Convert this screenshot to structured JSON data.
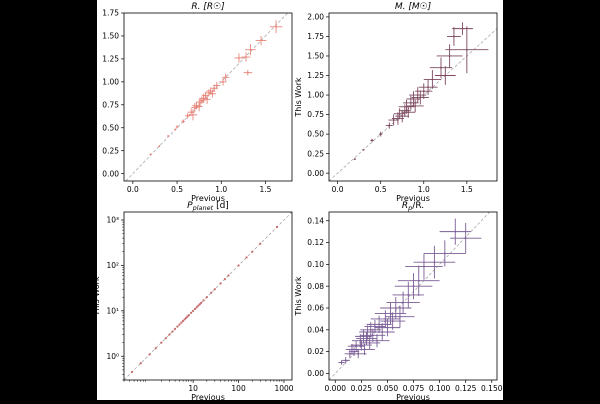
{
  "chart_data": [
    {
      "type": "scatter",
      "title": "R. [R☉]",
      "xlabel": "Previous",
      "ylabel": "This Work",
      "xlim": [
        -0.1,
        1.8
      ],
      "ylim": [
        -0.08,
        1.75
      ],
      "xticks": [
        0.0,
        0.5,
        1.0,
        1.5
      ],
      "xtick_labels": [
        "0.0",
        "0.5",
        "1.0",
        "1.5"
      ],
      "yticks": [
        0.0,
        0.25,
        0.5,
        0.75,
        1.0,
        1.25,
        1.5,
        1.75
      ],
      "ytick_labels": [
        "0.00",
        "0.25",
        "0.50",
        "0.75",
        "1.00",
        "1.25",
        "1.50",
        "1.75"
      ],
      "scale": "linear",
      "color": "#e8857a",
      "points": [
        {
          "x": 0.2,
          "y": 0.21,
          "ex": 0.01,
          "ey": 0.01
        },
        {
          "x": 0.3,
          "y": 0.3,
          "ex": 0.01,
          "ey": 0.01
        },
        {
          "x": 0.4,
          "y": 0.41,
          "ex": 0.01,
          "ey": 0.01
        },
        {
          "x": 0.48,
          "y": 0.48,
          "ex": 0.01,
          "ey": 0.01
        },
        {
          "x": 0.5,
          "y": 0.51,
          "ex": 0.015,
          "ey": 0.015
        },
        {
          "x": 0.57,
          "y": 0.57,
          "ex": 0.02,
          "ey": 0.02
        },
        {
          "x": 0.62,
          "y": 0.63,
          "ex": 0.03,
          "ey": 0.03
        },
        {
          "x": 0.66,
          "y": 0.67,
          "ex": 0.04,
          "ey": 0.04
        },
        {
          "x": 0.68,
          "y": 0.64,
          "ex": 0.05,
          "ey": 0.06
        },
        {
          "x": 0.7,
          "y": 0.72,
          "ex": 0.04,
          "ey": 0.05
        },
        {
          "x": 0.72,
          "y": 0.74,
          "ex": 0.05,
          "ey": 0.04
        },
        {
          "x": 0.75,
          "y": 0.73,
          "ex": 0.04,
          "ey": 0.05
        },
        {
          "x": 0.76,
          "y": 0.78,
          "ex": 0.05,
          "ey": 0.04
        },
        {
          "x": 0.78,
          "y": 0.8,
          "ex": 0.04,
          "ey": 0.04
        },
        {
          "x": 0.8,
          "y": 0.82,
          "ex": 0.05,
          "ey": 0.05
        },
        {
          "x": 0.82,
          "y": 0.85,
          "ex": 0.04,
          "ey": 0.04
        },
        {
          "x": 0.84,
          "y": 0.81,
          "ex": 0.04,
          "ey": 0.05
        },
        {
          "x": 0.86,
          "y": 0.88,
          "ex": 0.04,
          "ey": 0.04
        },
        {
          "x": 0.88,
          "y": 0.9,
          "ex": 0.05,
          "ey": 0.04
        },
        {
          "x": 0.9,
          "y": 0.87,
          "ex": 0.04,
          "ey": 0.04
        },
        {
          "x": 0.92,
          "y": 0.93,
          "ex": 0.04,
          "ey": 0.04
        },
        {
          "x": 0.95,
          "y": 0.96,
          "ex": 0.04,
          "ey": 0.04
        },
        {
          "x": 1.02,
          "y": 1.0,
          "ex": 0.04,
          "ey": 0.04
        },
        {
          "x": 1.05,
          "y": 1.05,
          "ex": 0.04,
          "ey": 0.04
        },
        {
          "x": 1.2,
          "y": 1.26,
          "ex": 0.05,
          "ey": 0.05
        },
        {
          "x": 1.28,
          "y": 1.27,
          "ex": 0.05,
          "ey": 0.05
        },
        {
          "x": 1.3,
          "y": 1.1,
          "ex": 0.05,
          "ey": 0.03
        },
        {
          "x": 1.33,
          "y": 1.35,
          "ex": 0.06,
          "ey": 0.06
        },
        {
          "x": 1.45,
          "y": 1.45,
          "ex": 0.06,
          "ey": 0.05
        },
        {
          "x": 1.62,
          "y": 1.6,
          "ex": 0.07,
          "ey": 0.07
        }
      ]
    },
    {
      "type": "scatter",
      "title": "M. [M☉]",
      "xlabel": "Previous",
      "ylabel": "This Work",
      "xlim": [
        -0.1,
        1.85
      ],
      "ylim": [
        -0.1,
        2.05
      ],
      "xticks": [
        0.0,
        0.5,
        1.0,
        1.5
      ],
      "xtick_labels": [
        "0.0",
        "0.5",
        "1.0",
        "1.5"
      ],
      "yticks": [
        0.0,
        0.25,
        0.5,
        0.75,
        1.0,
        1.25,
        1.5,
        1.75,
        2.0
      ],
      "ytick_labels": [
        "0.00",
        "0.25",
        "0.50",
        "0.75",
        "1.00",
        "1.25",
        "1.50",
        "1.75",
        "2.00"
      ],
      "scale": "linear",
      "color": "#7d4860",
      "points": [
        {
          "x": 0.2,
          "y": 0.18,
          "ex": 0.01,
          "ey": 0.01
        },
        {
          "x": 0.3,
          "y": 0.3,
          "ex": 0.01,
          "ey": 0.01
        },
        {
          "x": 0.4,
          "y": 0.42,
          "ex": 0.02,
          "ey": 0.02
        },
        {
          "x": 0.5,
          "y": 0.5,
          "ex": 0.02,
          "ey": 0.03
        },
        {
          "x": 0.6,
          "y": 0.61,
          "ex": 0.04,
          "ey": 0.04
        },
        {
          "x": 0.65,
          "y": 0.68,
          "ex": 0.06,
          "ey": 0.07
        },
        {
          "x": 0.7,
          "y": 0.7,
          "ex": 0.07,
          "ey": 0.08
        },
        {
          "x": 0.72,
          "y": 0.76,
          "ex": 0.07,
          "ey": 0.07
        },
        {
          "x": 0.75,
          "y": 0.73,
          "ex": 0.08,
          "ey": 0.08
        },
        {
          "x": 0.78,
          "y": 0.8,
          "ex": 0.07,
          "ey": 0.08
        },
        {
          "x": 0.8,
          "y": 0.85,
          "ex": 0.09,
          "ey": 0.09
        },
        {
          "x": 0.82,
          "y": 0.78,
          "ex": 0.08,
          "ey": 0.07
        },
        {
          "x": 0.85,
          "y": 0.9,
          "ex": 0.09,
          "ey": 0.09
        },
        {
          "x": 0.88,
          "y": 0.95,
          "ex": 0.08,
          "ey": 0.1
        },
        {
          "x": 0.9,
          "y": 0.86,
          "ex": 0.1,
          "ey": 0.08
        },
        {
          "x": 0.93,
          "y": 1.0,
          "ex": 0.1,
          "ey": 0.1
        },
        {
          "x": 0.96,
          "y": 0.97,
          "ex": 0.1,
          "ey": 0.09
        },
        {
          "x": 1.0,
          "y": 1.05,
          "ex": 0.1,
          "ey": 0.1
        },
        {
          "x": 1.05,
          "y": 1.1,
          "ex": 0.11,
          "ey": 0.1
        },
        {
          "x": 1.1,
          "y": 1.2,
          "ex": 0.1,
          "ey": 0.12
        },
        {
          "x": 1.2,
          "y": 1.35,
          "ex": 0.13,
          "ey": 0.13
        },
        {
          "x": 1.25,
          "y": 1.25,
          "ex": 0.12,
          "ey": 0.12
        },
        {
          "x": 1.3,
          "y": 1.5,
          "ex": 0.15,
          "ey": 0.15
        },
        {
          "x": 1.35,
          "y": 1.75,
          "ex": 0.08,
          "ey": 0.12
        },
        {
          "x": 1.5,
          "y": 1.58,
          "ex": 0.25,
          "ey": 0.3
        },
        {
          "x": 1.45,
          "y": 1.85,
          "ex": 0.12,
          "ey": 0.08
        }
      ]
    },
    {
      "type": "scatter",
      "title": "P_planet [d]",
      "title_main": "P",
      "title_sub": "planet",
      "title_unit": " [d]",
      "xlabel": "Previous",
      "ylabel": "This Work",
      "xlim": [
        0.3,
        1500
      ],
      "ylim": [
        0.3,
        1500
      ],
      "xticks": [
        10,
        100,
        1000
      ],
      "xtick_labels": [
        "10",
        "100",
        "1000"
      ],
      "yticks": [
        1,
        10,
        100,
        1000
      ],
      "ytick_labels": [
        "10⁰",
        "10¹",
        "10²",
        "10³"
      ],
      "scale": "log",
      "color": "#c96a6a",
      "points": [
        {
          "x": 0.45,
          "y": 0.45
        },
        {
          "x": 0.7,
          "y": 0.7
        },
        {
          "x": 1.1,
          "y": 1.1
        },
        {
          "x": 1.5,
          "y": 1.5
        },
        {
          "x": 2.0,
          "y": 2.0
        },
        {
          "x": 2.5,
          "y": 2.5
        },
        {
          "x": 3.0,
          "y": 3.0
        },
        {
          "x": 3.5,
          "y": 3.5
        },
        {
          "x": 4.0,
          "y": 4.0
        },
        {
          "x": 4.5,
          "y": 4.5
        },
        {
          "x": 5.0,
          "y": 5.0
        },
        {
          "x": 5.5,
          "y": 5.5
        },
        {
          "x": 6.0,
          "y": 6.0
        },
        {
          "x": 6.5,
          "y": 6.5
        },
        {
          "x": 7.0,
          "y": 7.0
        },
        {
          "x": 7.5,
          "y": 7.5
        },
        {
          "x": 8.0,
          "y": 8.0
        },
        {
          "x": 9.0,
          "y": 9.0
        },
        {
          "x": 10,
          "y": 10
        },
        {
          "x": 11,
          "y": 11
        },
        {
          "x": 12,
          "y": 12
        },
        {
          "x": 13,
          "y": 13
        },
        {
          "x": 14,
          "y": 14
        },
        {
          "x": 15,
          "y": 15
        },
        {
          "x": 17,
          "y": 17
        },
        {
          "x": 20,
          "y": 20
        },
        {
          "x": 25,
          "y": 25
        },
        {
          "x": 30,
          "y": 30
        },
        {
          "x": 40,
          "y": 40
        },
        {
          "x": 50,
          "y": 50
        },
        {
          "x": 60,
          "y": 60
        },
        {
          "x": 100,
          "y": 100
        },
        {
          "x": 150,
          "y": 150
        },
        {
          "x": 200,
          "y": 200
        },
        {
          "x": 300,
          "y": 300
        },
        {
          "x": 700,
          "y": 700
        }
      ]
    },
    {
      "type": "scatter",
      "title": "Rp/R.",
      "title_main": "R",
      "title_sub": "p",
      "title_unit": "/R.",
      "xlabel": "Previous",
      "ylabel": "This Work",
      "xlim": [
        -0.006,
        0.155
      ],
      "ylim": [
        -0.006,
        0.148
      ],
      "xticks": [
        0.0,
        0.025,
        0.05,
        0.075,
        0.1,
        0.125,
        0.15
      ],
      "xtick_labels": [
        "0.000",
        "0.025",
        "0.050",
        "0.075",
        "0.100",
        "0.125",
        "0.150"
      ],
      "yticks": [
        0.0,
        0.02,
        0.04,
        0.06,
        0.08,
        0.1,
        0.12,
        0.14
      ],
      "ytick_labels": [
        "0.00",
        "0.02",
        "0.04",
        "0.06",
        "0.08",
        "0.10",
        "0.12",
        "0.14"
      ],
      "scale": "linear",
      "color": "#7a5c96",
      "points": [
        {
          "x": 0.006,
          "y": 0.01,
          "ex": 0.003,
          "ey": 0.002
        },
        {
          "x": 0.01,
          "y": 0.012,
          "ex": 0.004,
          "ey": 0.003
        },
        {
          "x": 0.014,
          "y": 0.018,
          "ex": 0.005,
          "ey": 0.004
        },
        {
          "x": 0.016,
          "y": 0.022,
          "ex": 0.006,
          "ey": 0.005
        },
        {
          "x": 0.018,
          "y": 0.02,
          "ex": 0.005,
          "ey": 0.004
        },
        {
          "x": 0.02,
          "y": 0.025,
          "ex": 0.008,
          "ey": 0.005
        },
        {
          "x": 0.022,
          "y": 0.018,
          "ex": 0.008,
          "ey": 0.004
        },
        {
          "x": 0.024,
          "y": 0.03,
          "ex": 0.008,
          "ey": 0.006
        },
        {
          "x": 0.025,
          "y": 0.026,
          "ex": 0.01,
          "ey": 0.005
        },
        {
          "x": 0.027,
          "y": 0.034,
          "ex": 0.008,
          "ey": 0.006
        },
        {
          "x": 0.028,
          "y": 0.022,
          "ex": 0.01,
          "ey": 0.005
        },
        {
          "x": 0.03,
          "y": 0.032,
          "ex": 0.01,
          "ey": 0.006
        },
        {
          "x": 0.031,
          "y": 0.038,
          "ex": 0.008,
          "ey": 0.006
        },
        {
          "x": 0.033,
          "y": 0.028,
          "ex": 0.01,
          "ey": 0.006
        },
        {
          "x": 0.034,
          "y": 0.04,
          "ex": 0.01,
          "ey": 0.007
        },
        {
          "x": 0.036,
          "y": 0.035,
          "ex": 0.012,
          "ey": 0.006
        },
        {
          "x": 0.038,
          "y": 0.043,
          "ex": 0.01,
          "ey": 0.006
        },
        {
          "x": 0.04,
          "y": 0.03,
          "ex": 0.012,
          "ey": 0.006
        },
        {
          "x": 0.042,
          "y": 0.045,
          "ex": 0.012,
          "ey": 0.008
        },
        {
          "x": 0.045,
          "y": 0.038,
          "ex": 0.012,
          "ey": 0.008
        },
        {
          "x": 0.048,
          "y": 0.05,
          "ex": 0.014,
          "ey": 0.008
        },
        {
          "x": 0.05,
          "y": 0.042,
          "ex": 0.012,
          "ey": 0.008
        },
        {
          "x": 0.053,
          "y": 0.055,
          "ex": 0.015,
          "ey": 0.01
        },
        {
          "x": 0.055,
          "y": 0.048,
          "ex": 0.012,
          "ey": 0.008
        },
        {
          "x": 0.058,
          "y": 0.06,
          "ex": 0.015,
          "ey": 0.01
        },
        {
          "x": 0.062,
          "y": 0.052,
          "ex": 0.014,
          "ey": 0.01
        },
        {
          "x": 0.065,
          "y": 0.065,
          "ex": 0.016,
          "ey": 0.01
        },
        {
          "x": 0.07,
          "y": 0.072,
          "ex": 0.015,
          "ey": 0.012
        },
        {
          "x": 0.075,
          "y": 0.08,
          "ex": 0.018,
          "ey": 0.012
        },
        {
          "x": 0.08,
          "y": 0.085,
          "ex": 0.02,
          "ey": 0.014
        },
        {
          "x": 0.085,
          "y": 0.098,
          "ex": 0.018,
          "ey": 0.012
        },
        {
          "x": 0.095,
          "y": 0.102,
          "ex": 0.02,
          "ey": 0.015
        },
        {
          "x": 0.105,
          "y": 0.11,
          "ex": 0.02,
          "ey": 0.012
        },
        {
          "x": 0.115,
          "y": 0.13,
          "ex": 0.015,
          "ey": 0.012
        },
        {
          "x": 0.125,
          "y": 0.124,
          "ex": 0.015,
          "ey": 0.014
        }
      ]
    }
  ]
}
